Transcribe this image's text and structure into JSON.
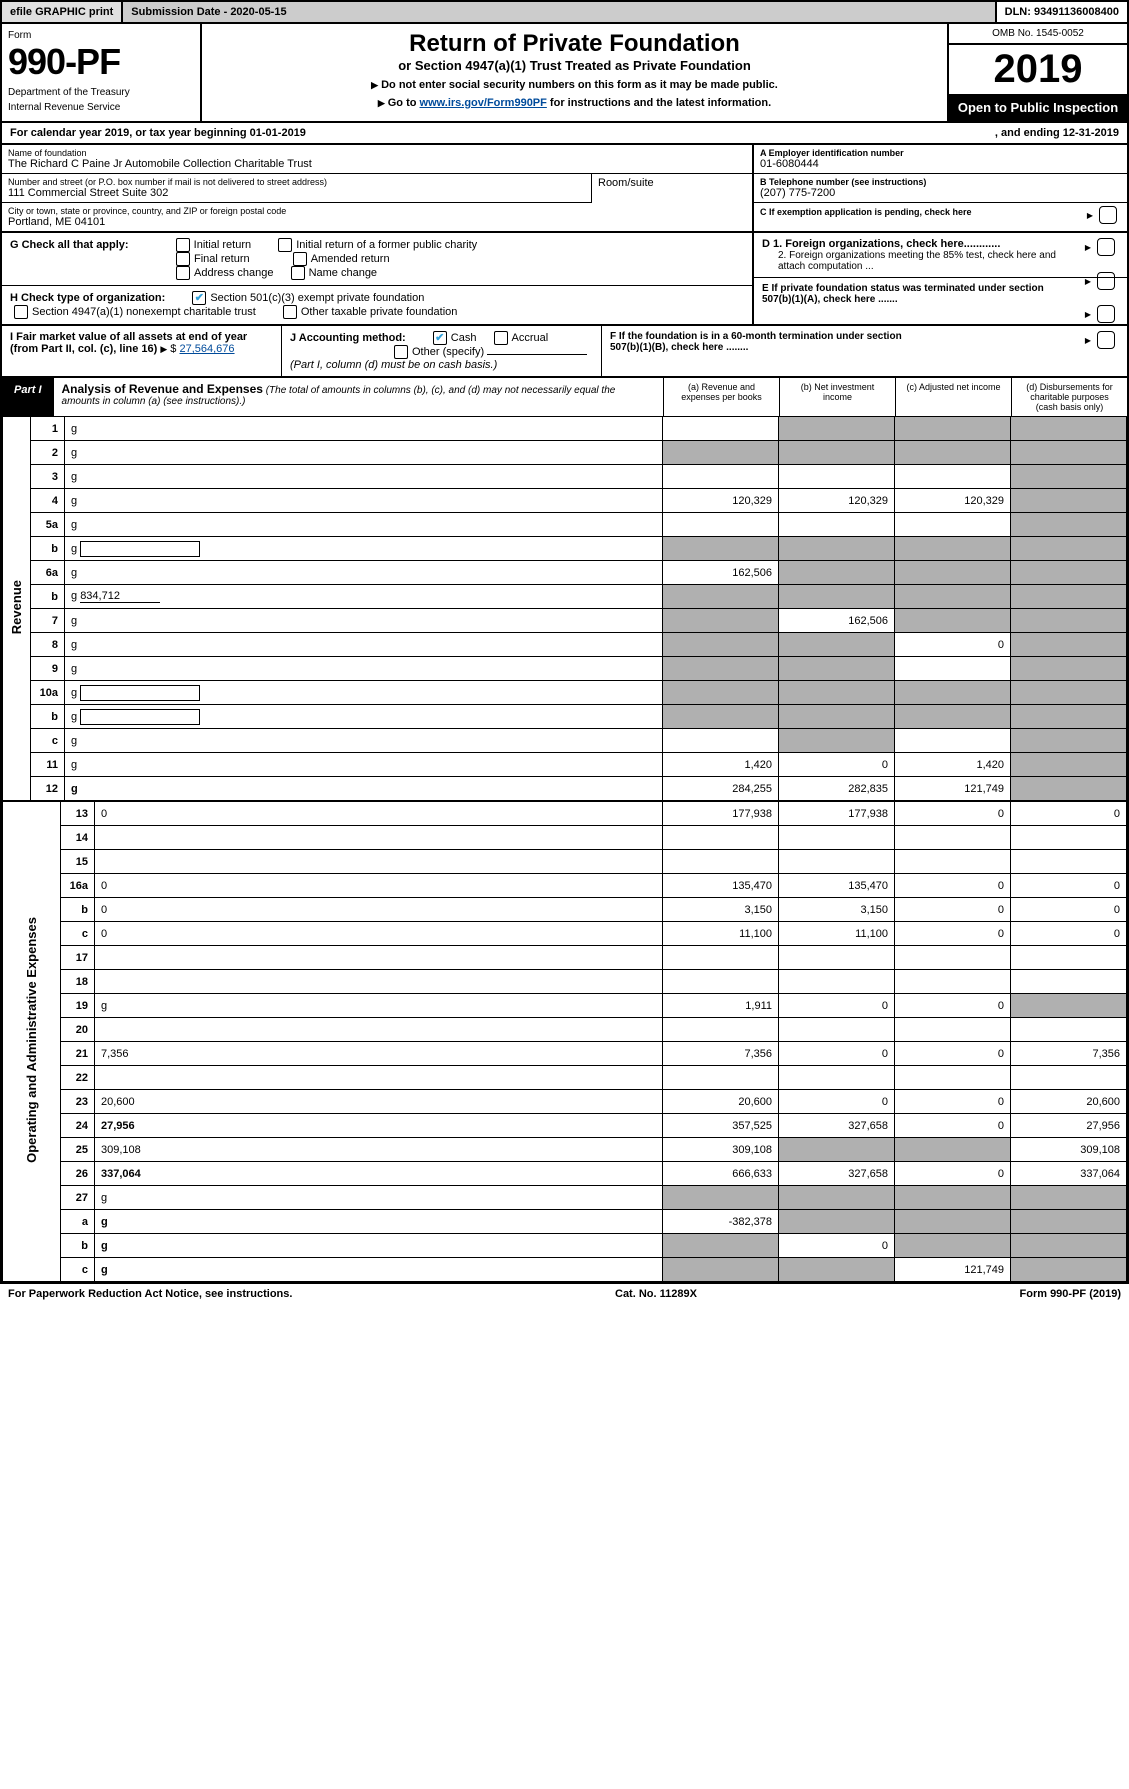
{
  "top": {
    "efile": "efile GRAPHIC print",
    "submission": "Submission Date - 2020-05-15",
    "dln": "DLN: 93491136008400"
  },
  "header": {
    "form_word": "Form",
    "form_num": "990-PF",
    "dept": "Department of the Treasury",
    "irs": "Internal Revenue Service",
    "title": "Return of Private Foundation",
    "subtitle": "or Section 4947(a)(1) Trust Treated as Private Foundation",
    "line2a": "Do not enter social security numbers on this form as it may be made public.",
    "line2b_pre": "Go to ",
    "line2b_link": "www.irs.gov/Form990PF",
    "line2b_post": " for instructions and the latest information.",
    "omb": "OMB No. 1545-0052",
    "year": "2019",
    "open": "Open to Public Inspection"
  },
  "period": {
    "left": "For calendar year 2019, or tax year beginning 01-01-2019",
    "right": ", and ending 12-31-2019"
  },
  "info": {
    "name_lbl": "Name of foundation",
    "name": "The Richard C Paine Jr Automobile Collection Charitable Trust",
    "addr_lbl": "Number and street (or P.O. box number if mail is not delivered to street address)",
    "addr": "111 Commercial Street Suite 302",
    "room_lbl": "Room/suite",
    "city_lbl": "City or town, state or province, country, and ZIP or foreign postal code",
    "city": "Portland, ME  04101",
    "a_lbl": "A Employer identification number",
    "a_val": "01-6080444",
    "b_lbl": "B Telephone number (see instructions)",
    "b_val": "(207) 775-7200",
    "c_lbl": "C If exemption application is pending, check here"
  },
  "checks": {
    "g_lbl": "G Check all that apply:",
    "g1": "Initial return",
    "g2": "Initial return of a former public charity",
    "g3": "Final return",
    "g4": "Amended return",
    "g5": "Address change",
    "g6": "Name change",
    "h_lbl": "H Check type of organization:",
    "h1": "Section 501(c)(3) exempt private foundation",
    "h2": "Section 4947(a)(1) nonexempt charitable trust",
    "h3": "Other taxable private foundation",
    "d1": "D 1. Foreign organizations, check here............",
    "d2": "2. Foreign organizations meeting the 85% test, check here and attach computation ...",
    "e": "E  If private foundation status was terminated under section 507(b)(1)(A), check here .......",
    "i": "I Fair market value of all assets at end of year (from Part II, col. (c), line 16)",
    "i_val": "27,564,676",
    "j": "J Accounting method:",
    "j1": "Cash",
    "j2": "Accrual",
    "j3": "Other (specify)",
    "j_note": "(Part I, column (d) must be on cash basis.)",
    "f": "F  If the foundation is in a 60-month termination under section 507(b)(1)(B), check here ........"
  },
  "part1": {
    "tag": "Part I",
    "title": "Analysis of Revenue and Expenses",
    "note": " (The total of amounts in columns (b), (c), and (d) may not necessarily equal the amounts in column (a) (see instructions).)",
    "col_a": "(a)   Revenue and expenses per books",
    "col_b": "(b)  Net investment income",
    "col_c": "(c)  Adjusted net income",
    "col_d": "(d)  Disbursements for charitable purposes (cash basis only)",
    "side_rev": "Revenue",
    "side_exp": "Operating and Administrative Expenses"
  },
  "rows": [
    {
      "n": "1",
      "d": "g",
      "a": "",
      "b": "g",
      "c": "g"
    },
    {
      "n": "2",
      "d": "g",
      "a": "g",
      "b": "g",
      "c": "g"
    },
    {
      "n": "3",
      "d": "g",
      "a": "",
      "b": "",
      "c": ""
    },
    {
      "n": "4",
      "d": "g",
      "a": "120,329",
      "b": "120,329",
      "c": "120,329"
    },
    {
      "n": "5a",
      "d": "g",
      "a": "",
      "b": "",
      "c": ""
    },
    {
      "n": "b",
      "d": "g",
      "a": "g",
      "b": "g",
      "c": "g",
      "box": true
    },
    {
      "n": "6a",
      "d": "g",
      "a": "162,506",
      "b": "g",
      "c": "g"
    },
    {
      "n": "b",
      "d": "g",
      "a": "g",
      "b": "g",
      "c": "g",
      "u": "834,712"
    },
    {
      "n": "7",
      "d": "g",
      "a": "g",
      "b": "162,506",
      "c": "g"
    },
    {
      "n": "8",
      "d": "g",
      "a": "g",
      "b": "g",
      "c": "0"
    },
    {
      "n": "9",
      "d": "g",
      "a": "g",
      "b": "g",
      "c": ""
    },
    {
      "n": "10a",
      "d": "g",
      "a": "g",
      "b": "g",
      "c": "g",
      "box": true
    },
    {
      "n": "b",
      "d": "g",
      "a": "g",
      "b": "g",
      "c": "g",
      "box": true
    },
    {
      "n": "c",
      "d": "g",
      "a": "",
      "b": "g",
      "c": ""
    },
    {
      "n": "11",
      "d": "g",
      "a": "1,420",
      "b": "0",
      "c": "1,420"
    },
    {
      "n": "12",
      "d": "g",
      "a": "284,255",
      "b": "282,835",
      "c": "121,749",
      "bold": true
    }
  ],
  "exp_rows": [
    {
      "n": "13",
      "d": "0",
      "a": "177,938",
      "b": "177,938",
      "c": "0"
    },
    {
      "n": "14",
      "d": "",
      "a": "",
      "b": "",
      "c": ""
    },
    {
      "n": "15",
      "d": "",
      "a": "",
      "b": "",
      "c": ""
    },
    {
      "n": "16a",
      "d": "0",
      "a": "135,470",
      "b": "135,470",
      "c": "0"
    },
    {
      "n": "b",
      "d": "0",
      "a": "3,150",
      "b": "3,150",
      "c": "0"
    },
    {
      "n": "c",
      "d": "0",
      "a": "11,100",
      "b": "11,100",
      "c": "0"
    },
    {
      "n": "17",
      "d": "",
      "a": "",
      "b": "",
      "c": ""
    },
    {
      "n": "18",
      "d": "",
      "a": "",
      "b": "",
      "c": ""
    },
    {
      "n": "19",
      "d": "g",
      "a": "1,911",
      "b": "0",
      "c": "0"
    },
    {
      "n": "20",
      "d": "",
      "a": "",
      "b": "",
      "c": ""
    },
    {
      "n": "21",
      "d": "7,356",
      "a": "7,356",
      "b": "0",
      "c": "0"
    },
    {
      "n": "22",
      "d": "",
      "a": "",
      "b": "",
      "c": ""
    },
    {
      "n": "23",
      "d": "20,600",
      "a": "20,600",
      "b": "0",
      "c": "0"
    },
    {
      "n": "24",
      "d": "27,956",
      "a": "357,525",
      "b": "327,658",
      "c": "0",
      "bold": true
    },
    {
      "n": "25",
      "d": "309,108",
      "a": "309,108",
      "b": "g",
      "c": "g"
    },
    {
      "n": "26",
      "d": "337,064",
      "a": "666,633",
      "b": "327,658",
      "c": "0",
      "bold": true
    },
    {
      "n": "27",
      "d": "g",
      "a": "g",
      "b": "g",
      "c": "g"
    },
    {
      "n": "a",
      "d": "g",
      "a": "-382,378",
      "b": "g",
      "c": "g",
      "bold": true
    },
    {
      "n": "b",
      "d": "g",
      "a": "g",
      "b": "0",
      "c": "g",
      "bold": true
    },
    {
      "n": "c",
      "d": "g",
      "a": "g",
      "b": "g",
      "c": "121,749",
      "bold": true
    }
  ],
  "footer": {
    "left": "For Paperwork Reduction Act Notice, see instructions.",
    "mid": "Cat. No. 11289X",
    "right": "Form 990-PF (2019)"
  },
  "colors": {
    "link": "#004b9b",
    "check": "#33a2db",
    "gray": "#b0b0b0"
  }
}
